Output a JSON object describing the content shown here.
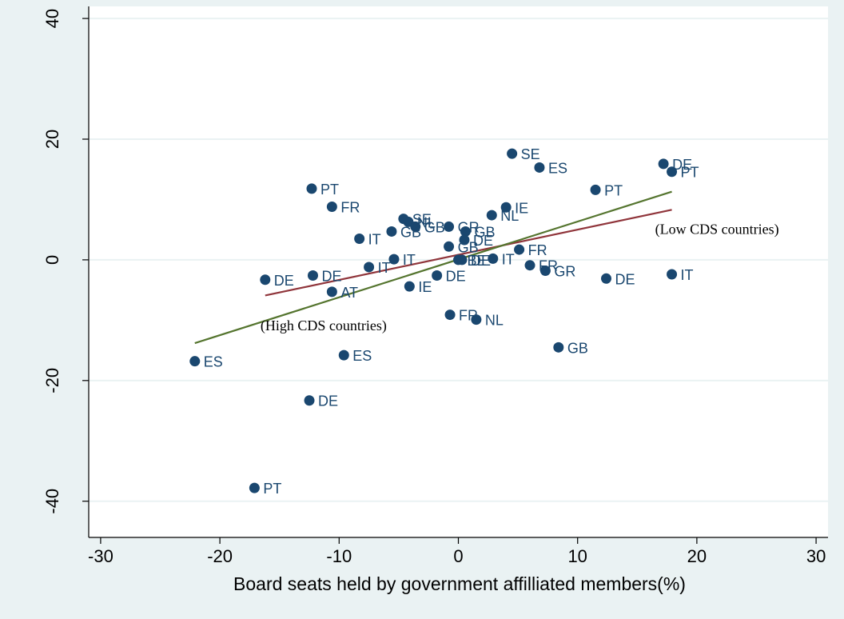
{
  "chart_data": {
    "type": "scatter",
    "xlabel": "Board seats held by government affilliated members(%)",
    "ylabel": "",
    "xlim": [
      -31,
      31
    ],
    "ylim": [
      -46,
      42
    ],
    "xticks": [
      -30,
      -20,
      -10,
      0,
      10,
      20,
      30
    ],
    "yticks": [
      -40,
      -20,
      0,
      20,
      40
    ],
    "grid": true,
    "colors": {
      "background": "#eaf2f3",
      "plot": "#ffffff",
      "points": "#1a476f",
      "grid": "#eaf2f3",
      "fit_low": "#90353b",
      "fit_high": "#55752f"
    },
    "points": [
      {
        "x": 4.5,
        "y": 17.6,
        "label": "SE"
      },
      {
        "x": 6.8,
        "y": 15.3,
        "label": "ES"
      },
      {
        "x": 17.2,
        "y": 15.9,
        "label": "DE"
      },
      {
        "x": 17.9,
        "y": 14.6,
        "label": "PT"
      },
      {
        "x": -12.3,
        "y": 11.8,
        "label": "PT"
      },
      {
        "x": 11.5,
        "y": 11.6,
        "label": "PT"
      },
      {
        "x": -10.6,
        "y": 8.8,
        "label": "FR"
      },
      {
        "x": 4.0,
        "y": 8.7,
        "label": "IE"
      },
      {
        "x": 2.8,
        "y": 7.4,
        "label": "NL"
      },
      {
        "x": -4.6,
        "y": 6.8,
        "label": "SE"
      },
      {
        "x": -4.2,
        "y": 6.3,
        "label": "NL"
      },
      {
        "x": -3.6,
        "y": 5.5,
        "label": "GB"
      },
      {
        "x": -0.8,
        "y": 5.5,
        "label": "GR"
      },
      {
        "x": -5.6,
        "y": 4.7,
        "label": "GB"
      },
      {
        "x": 0.6,
        "y": 4.7,
        "label": "GB"
      },
      {
        "x": -8.3,
        "y": 3.5,
        "label": "IT"
      },
      {
        "x": 0.5,
        "y": 3.3,
        "label": "DE"
      },
      {
        "x": -0.8,
        "y": 2.2,
        "label": "GB"
      },
      {
        "x": 5.1,
        "y": 1.7,
        "label": "FR"
      },
      {
        "x": -5.4,
        "y": 0.1,
        "label": "IT"
      },
      {
        "x": 0.0,
        "y": 0.0,
        "label": "BE"
      },
      {
        "x": 0.3,
        "y": 0.0,
        "label": "DE"
      },
      {
        "x": 2.9,
        "y": 0.2,
        "label": "IT"
      },
      {
        "x": -7.5,
        "y": -1.2,
        "label": "IT"
      },
      {
        "x": 6.0,
        "y": -0.9,
        "label": "FR"
      },
      {
        "x": 7.3,
        "y": -1.8,
        "label": "GR"
      },
      {
        "x": -16.2,
        "y": -3.3,
        "label": "DE"
      },
      {
        "x": -12.2,
        "y": -2.6,
        "label": "DE"
      },
      {
        "x": -1.8,
        "y": -2.6,
        "label": "DE"
      },
      {
        "x": 12.4,
        "y": -3.1,
        "label": "DE"
      },
      {
        "x": 17.9,
        "y": -2.4,
        "label": "IT"
      },
      {
        "x": -10.6,
        "y": -5.3,
        "label": "AT"
      },
      {
        "x": -4.1,
        "y": -4.4,
        "label": "IE"
      },
      {
        "x": -0.7,
        "y": -9.1,
        "label": "FR"
      },
      {
        "x": 1.5,
        "y": -9.9,
        "label": "NL"
      },
      {
        "x": -9.6,
        "y": -15.8,
        "label": "ES"
      },
      {
        "x": 8.4,
        "y": -14.5,
        "label": "GB"
      },
      {
        "x": -22.1,
        "y": -16.8,
        "label": "ES"
      },
      {
        "x": -12.5,
        "y": -23.3,
        "label": "DE"
      },
      {
        "x": -17.1,
        "y": -37.8,
        "label": "PT"
      }
    ],
    "lines": [
      {
        "x1": -16.2,
        "y1": -5.9,
        "x2": 17.9,
        "y2": 8.3,
        "color": "#90353b"
      },
      {
        "x1": -22.1,
        "y1": -13.8,
        "x2": 17.9,
        "y2": 11.3,
        "color": "#55752f"
      }
    ],
    "annotations": [
      {
        "text": "(Low CDS countries)",
        "x": 16.5,
        "y": 4.3
      },
      {
        "text": "(High CDS countries)",
        "x": -16.6,
        "y": -11.7
      }
    ]
  }
}
